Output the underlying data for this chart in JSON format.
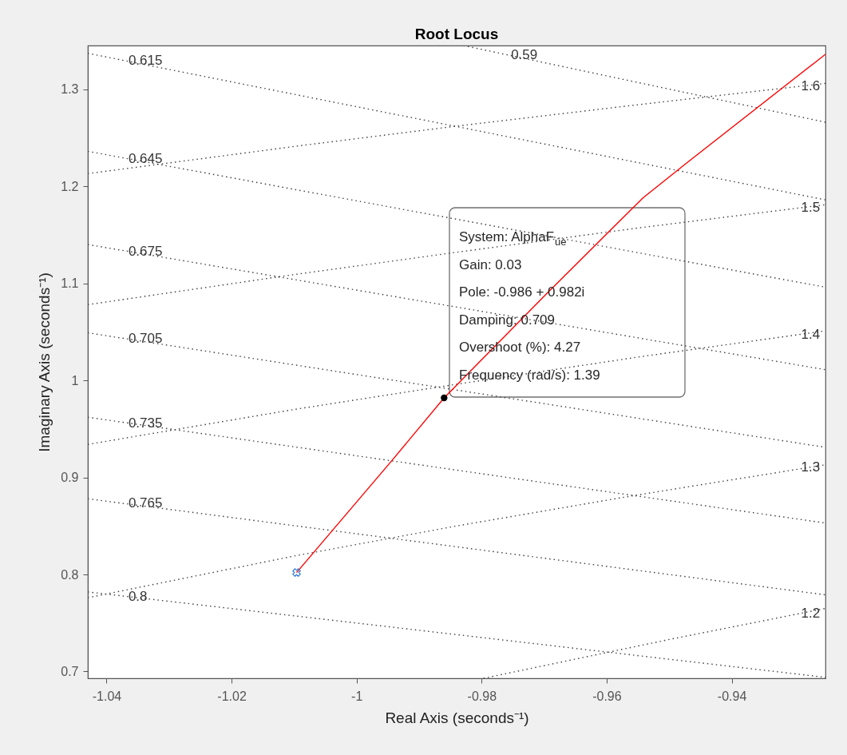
{
  "chart_data": {
    "type": "line",
    "title": "Root Locus",
    "xlabel": "Real Axis (seconds⁻¹)",
    "ylabel": "Imaginary Axis (seconds⁻¹)",
    "xlim": [
      -1.043,
      -0.925
    ],
    "ylim": [
      0.693,
      1.345
    ],
    "xticks": [
      -1.04,
      -1.02,
      -1,
      -0.98,
      -0.96,
      -0.94
    ],
    "yticks": [
      0.7,
      0.8,
      0.9,
      1,
      1.1,
      1.2,
      1.3
    ],
    "grid": false,
    "series": [
      {
        "color": "#404040",
        "line_style": "dotted",
        "marker": "none",
        "x": [
          -1.043,
          -0.925
        ],
        "values": [
          1.337,
          1.186
        ]
      },
      {
        "color": "#404040",
        "line_style": "dotted",
        "marker": "none",
        "x": [
          -1.043,
          -0.925
        ],
        "values": [
          1.236,
          1.096
        ]
      },
      {
        "color": "#404040",
        "line_style": "dotted",
        "marker": "none",
        "x": [
          -1.043,
          -0.925
        ],
        "values": [
          1.14,
          1.011
        ]
      },
      {
        "color": "#404040",
        "line_style": "dotted",
        "marker": "none",
        "x": [
          -1.043,
          -0.925
        ],
        "values": [
          1.049,
          0.931
        ]
      },
      {
        "color": "#404040",
        "line_style": "dotted",
        "marker": "none",
        "x": [
          -1.043,
          -0.925
        ],
        "values": [
          0.962,
          0.853
        ]
      },
      {
        "color": "#404040",
        "line_style": "dotted",
        "marker": "none",
        "x": [
          -1.043,
          -0.925
        ],
        "values": [
          0.878,
          0.779
        ]
      },
      {
        "color": "#404040",
        "line_style": "dotted",
        "marker": "none",
        "x": [
          -1.043,
          -0.925
        ],
        "values": [
          0.782,
          0.694
        ]
      },
      {
        "color": "#404040",
        "line_style": "dotted",
        "marker": "none",
        "x": [
          -0.9829,
          -0.925
        ],
        "values": [
          1.345,
          1.266
        ]
      },
      {
        "color": "#404040",
        "line_style": "dotted",
        "marker": "none",
        "x": [
          -0.9797,
          -0.95,
          -0.925
        ],
        "values": [
          0.693,
          0.733,
          0.765
        ]
      },
      {
        "color": "#404040",
        "line_style": "dotted",
        "marker": "none",
        "x": [
          -1.043,
          -1.01,
          -0.984,
          -0.955,
          -0.925
        ],
        "values": [
          0.776,
          0.819,
          0.85,
          0.882,
          0.913
        ]
      },
      {
        "color": "#404040",
        "line_style": "dotted",
        "marker": "none",
        "x": [
          -1.043,
          -1.01,
          -0.984,
          -0.955,
          -0.925
        ],
        "values": [
          0.934,
          0.97,
          0.996,
          1.024,
          1.051
        ]
      },
      {
        "color": "#404040",
        "line_style": "dotted",
        "marker": "none",
        "x": [
          -1.043,
          -1.01,
          -0.984,
          -0.955,
          -0.925
        ],
        "values": [
          1.078,
          1.109,
          1.132,
          1.157,
          1.181
        ]
      },
      {
        "color": "#404040",
        "line_style": "dotted",
        "marker": "none",
        "x": [
          -1.043,
          -1.01,
          -0.984,
          -0.955,
          -0.925
        ],
        "values": [
          1.213,
          1.241,
          1.262,
          1.284,
          1.306
        ]
      },
      {
        "color": "#ff0000",
        "line_style": "solid",
        "marker": "none",
        "x": [
          -1.0096,
          -0.9944,
          -0.986,
          -0.9701,
          -0.9542,
          -0.9472,
          -0.925
        ],
        "values": [
          0.802,
          0.917,
          0.982,
          1.086,
          1.188,
          1.224,
          1.336
        ]
      },
      {
        "type": "scatter",
        "color": "#3a7fd5",
        "marker": "cross",
        "x": [
          -1.0096
        ],
        "values": [
          0.802
        ]
      },
      {
        "type": "scatter",
        "color": "#000000",
        "marker": "circle",
        "x": [
          -0.986
        ],
        "values": [
          0.982
        ]
      }
    ],
    "annotations": [
      {
        "text": "0.615",
        "x": -1.0365,
        "y": 1.329
      },
      {
        "text": "0.645",
        "x": -1.0365,
        "y": 1.228
      },
      {
        "text": "0.675",
        "x": -1.0365,
        "y": 1.133
      },
      {
        "text": "0.705",
        "x": -1.0365,
        "y": 1.043
      },
      {
        "text": "0.735",
        "x": -1.0365,
        "y": 0.956
      },
      {
        "text": "0.765",
        "x": -1.0365,
        "y": 0.873
      },
      {
        "text": "0.8",
        "x": -1.0365,
        "y": 0.777
      },
      {
        "text": "0.59",
        "x": -0.9753,
        "y": 1.335
      },
      {
        "text": "1.6",
        "x": -0.9289,
        "y": 1.303
      },
      {
        "text": "1.5",
        "x": -0.9289,
        "y": 1.178
      },
      {
        "text": "1.4",
        "x": -0.9289,
        "y": 1.047
      },
      {
        "text": "1.3",
        "x": -0.9289,
        "y": 0.91
      },
      {
        "text": "1.2",
        "x": -0.9289,
        "y": 0.76
      },
      "System: AlphaF$_{ue}$",
      "Gain: 0.03",
      "Pole: -0.986 + 0.982i",
      "Damping: 0.709",
      "Overshoot (%): 4.27",
      "Frequency (rad/s): 1.39"
    ]
  }
}
